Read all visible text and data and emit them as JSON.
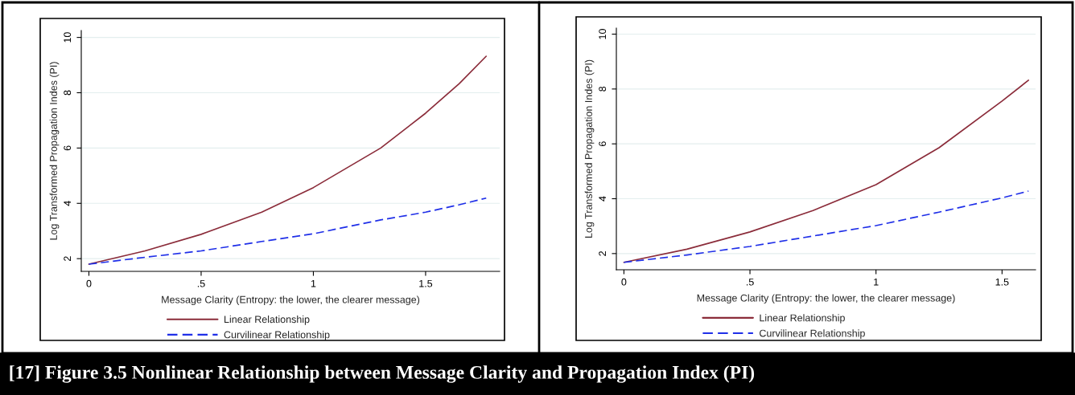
{
  "chart_data": [
    {
      "type": "line",
      "xlabel": "Message Clarity (Entropy: the lower, the clearer message)",
      "ylabel": "Log Transformed Propagation Indes (PI)",
      "x": [
        0,
        0.25,
        0.5,
        0.77,
        1,
        1.3,
        1.5,
        1.65,
        1.77
      ],
      "series": [
        {
          "name": "Linear Relationship",
          "color": "#8b2c3a",
          "line_style": "solid",
          "values": [
            1.8,
            2.28,
            2.88,
            3.68,
            4.57,
            6.0,
            7.26,
            8.33,
            9.32
          ]
        },
        {
          "name": "Curvilinear Relationship",
          "color": "#1f2fe8",
          "line_style": "dashed",
          "values": [
            1.8,
            2.05,
            2.28,
            2.62,
            2.9,
            3.4,
            3.68,
            3.95,
            4.19
          ]
        }
      ],
      "xlim": [
        -0.034,
        1.83
      ],
      "xticks": [
        0,
        {
          "value": 0.5,
          "label": ".5"
        },
        1,
        1.5
      ],
      "ylim": [
        1.54,
        10.25
      ],
      "yticks": [
        2,
        4,
        6,
        8,
        10
      ],
      "grid": "y",
      "legend": "bottom",
      "annotations": [
        "[17] Figure 3.5 Nonlinear Relationship between Message Clarity and Propagation Index (PI)"
      ]
    },
    {
      "type": "line",
      "xlabel": "Message Clarity (Entropy: the lower, the clearer message)",
      "ylabel": "Log Transformed Propagation Indes (PI)",
      "x": [
        0,
        0.25,
        0.5,
        0.75,
        1,
        1.25,
        1.5,
        1.605
      ],
      "series": [
        {
          "name": "Linear Relationship",
          "color": "#8b2c3a",
          "line_style": "solid",
          "values": [
            1.68,
            2.16,
            2.79,
            3.57,
            4.51,
            5.86,
            7.56,
            8.32
          ]
        },
        {
          "name": "Curvilinear Relationship",
          "color": "#1f2fe8",
          "line_style": "dashed",
          "values": [
            1.68,
            1.95,
            2.26,
            2.64,
            3.02,
            3.51,
            4.03,
            4.28
          ]
        }
      ],
      "xlim": [
        -0.03,
        1.633
      ],
      "xticks": [
        0,
        {
          "value": 0.5,
          "label": ".5"
        },
        1,
        1.5
      ],
      "ylim": [
        1.41,
        10.22
      ],
      "yticks": [
        2,
        4,
        6,
        8,
        10
      ],
      "grid": "y",
      "legend": "bottom"
    }
  ]
}
